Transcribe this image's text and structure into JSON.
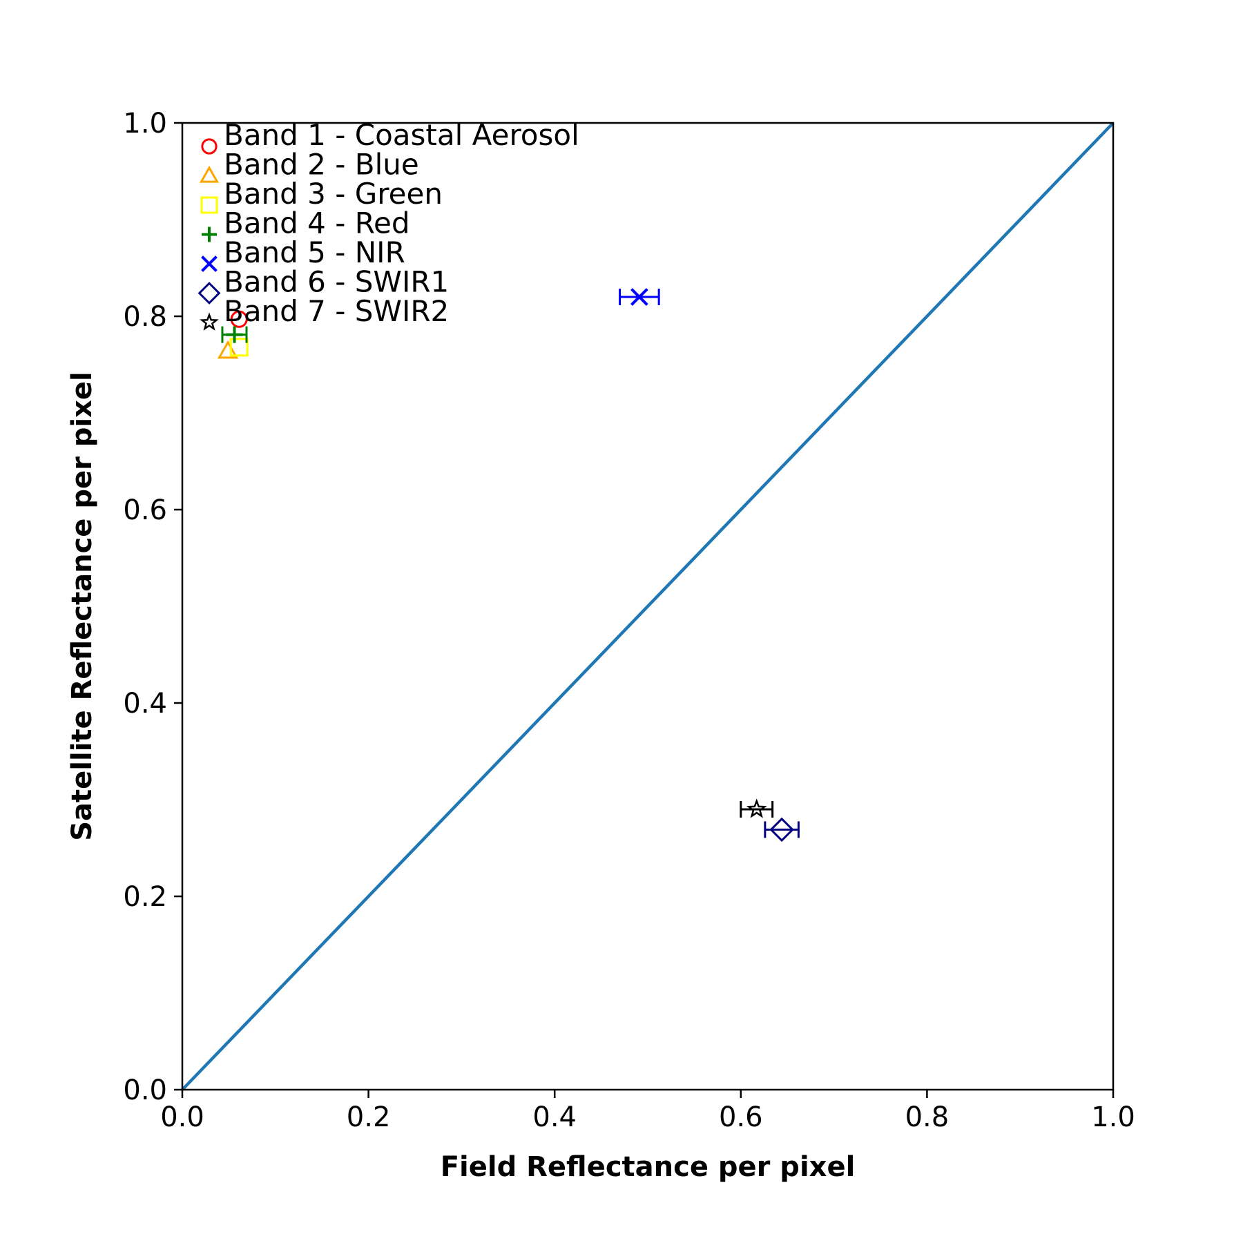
{
  "chart_data": {
    "type": "scatter",
    "title": "",
    "xlabel": "Field Reflectance per pixel",
    "ylabel": "Satellite Reflectance per pixel",
    "xlim": [
      0.0,
      1.0
    ],
    "ylim": [
      0.0,
      1.0
    ],
    "xticks": [
      "0.0",
      "0.2",
      "0.4",
      "0.6",
      "0.8",
      "1.0"
    ],
    "yticks": [
      "0.0",
      "0.2",
      "0.4",
      "0.6",
      "0.8",
      "1.0"
    ],
    "grid": false,
    "legend_position": "top-left",
    "reference_line": {
      "x": [
        0.0,
        1.0
      ],
      "y": [
        0.0,
        1.0
      ],
      "color": "#1f77b4"
    },
    "series": [
      {
        "name": "Band 1 - Coastal Aerosol",
        "marker": "circle",
        "color": "#ff0000",
        "x": 0.061,
        "y": 0.797,
        "xerr": 0.0
      },
      {
        "name": "Band 2 - Blue",
        "marker": "triangle",
        "color": "#ffa500",
        "x": 0.049,
        "y": 0.764,
        "xerr": 0.0
      },
      {
        "name": "Band 3 - Green",
        "marker": "square",
        "color": "#ffff00",
        "x": 0.061,
        "y": 0.768,
        "xerr": 0.0
      },
      {
        "name": "Band 4 - Red",
        "marker": "plus",
        "color": "#008000",
        "x": 0.056,
        "y": 0.781,
        "xerr": 0.013
      },
      {
        "name": "Band 5 - NIR",
        "marker": "x",
        "color": "#0000ff",
        "x": 0.491,
        "y": 0.82,
        "xerr": 0.021
      },
      {
        "name": "Band 6 - SWIR1",
        "marker": "diamond",
        "color": "#000080",
        "x": 0.644,
        "y": 0.269,
        "xerr": 0.018
      },
      {
        "name": "Band 7 - SWIR2",
        "marker": "star",
        "color": "#000000",
        "x": 0.617,
        "y": 0.29,
        "xerr": 0.017
      }
    ]
  }
}
